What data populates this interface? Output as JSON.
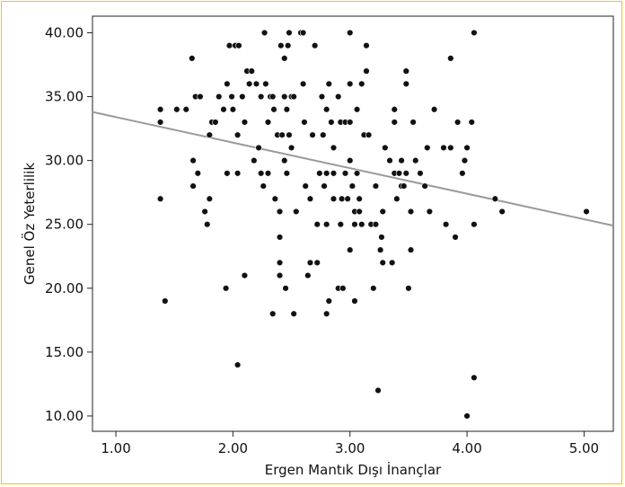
{
  "chart_data": {
    "type": "scatter",
    "title": "",
    "xlabel": "Ergen Mantık Dışı İnançlar",
    "ylabel": "Genel Öz Yeterlilik",
    "xlim": [
      0.8,
      5.25
    ],
    "ylim": [
      8.8,
      41.3
    ],
    "xticks": [
      1.0,
      2.0,
      3.0,
      4.0,
      5.0
    ],
    "yticks": [
      10.0,
      15.0,
      20.0,
      25.0,
      30.0,
      35.0,
      40.0
    ],
    "xtick_labels": [
      "1.00",
      "2.00",
      "3.00",
      "4.00",
      "5.00"
    ],
    "ytick_labels": [
      "10.00",
      "15.00",
      "20.00",
      "25.00",
      "30.00",
      "35.00",
      "40.00"
    ],
    "grid": false,
    "legend": "none",
    "fit_line": {
      "x1": 0.8,
      "y1": 33.8,
      "x2": 5.25,
      "y2": 24.9
    },
    "colors": {
      "frame": "#f5c400",
      "points": "#111111",
      "fit_line": "#9a9a9a",
      "axes": "#222222"
    },
    "points": [
      [
        1.38,
        34
      ],
      [
        1.38,
        33
      ],
      [
        1.38,
        27
      ],
      [
        1.42,
        19
      ],
      [
        1.52,
        34
      ],
      [
        1.6,
        34
      ],
      [
        1.65,
        38
      ],
      [
        1.66,
        30
      ],
      [
        1.66,
        28
      ],
      [
        1.68,
        35
      ],
      [
        1.7,
        29
      ],
      [
        1.72,
        35
      ],
      [
        1.76,
        26
      ],
      [
        1.78,
        25
      ],
      [
        1.8,
        27
      ],
      [
        1.8,
        32
      ],
      [
        1.82,
        33
      ],
      [
        1.85,
        33
      ],
      [
        1.88,
        35
      ],
      [
        1.92,
        34
      ],
      [
        1.94,
        20
      ],
      [
        1.95,
        29
      ],
      [
        1.95,
        36
      ],
      [
        1.97,
        39
      ],
      [
        1.99,
        35
      ],
      [
        2.0,
        34
      ],
      [
        2.02,
        39
      ],
      [
        2.04,
        29
      ],
      [
        2.04,
        32
      ],
      [
        2.04,
        14
      ],
      [
        2.05,
        39
      ],
      [
        2.08,
        35
      ],
      [
        2.1,
        33
      ],
      [
        2.1,
        21
      ],
      [
        2.12,
        37
      ],
      [
        2.14,
        36
      ],
      [
        2.16,
        37
      ],
      [
        2.18,
        30
      ],
      [
        2.2,
        36
      ],
      [
        2.22,
        31
      ],
      [
        2.24,
        29
      ],
      [
        2.24,
        35
      ],
      [
        2.26,
        28
      ],
      [
        2.27,
        40
      ],
      [
        2.28,
        36
      ],
      [
        2.3,
        29
      ],
      [
        2.3,
        33
      ],
      [
        2.32,
        35
      ],
      [
        2.34,
        35
      ],
      [
        2.34,
        18
      ],
      [
        2.35,
        34
      ],
      [
        2.36,
        27
      ],
      [
        2.38,
        32
      ],
      [
        2.4,
        26
      ],
      [
        2.4,
        24
      ],
      [
        2.4,
        22
      ],
      [
        2.4,
        21
      ],
      [
        2.41,
        39
      ],
      [
        2.42,
        32
      ],
      [
        2.44,
        38
      ],
      [
        2.44,
        35
      ],
      [
        2.44,
        30
      ],
      [
        2.45,
        20
      ],
      [
        2.46,
        29
      ],
      [
        2.46,
        34
      ],
      [
        2.47,
        39
      ],
      [
        2.48,
        32
      ],
      [
        2.48,
        40
      ],
      [
        2.5,
        31
      ],
      [
        2.5,
        35
      ],
      [
        2.52,
        18
      ],
      [
        2.52,
        35
      ],
      [
        2.54,
        26
      ],
      [
        2.58,
        40
      ],
      [
        2.6,
        40
      ],
      [
        2.6,
        36
      ],
      [
        2.61,
        33
      ],
      [
        2.62,
        28
      ],
      [
        2.64,
        21
      ],
      [
        2.66,
        22
      ],
      [
        2.66,
        27
      ],
      [
        2.68,
        32
      ],
      [
        2.7,
        39
      ],
      [
        2.72,
        22
      ],
      [
        2.72,
        25
      ],
      [
        2.74,
        29
      ],
      [
        2.76,
        35
      ],
      [
        2.77,
        32
      ],
      [
        2.78,
        28
      ],
      [
        2.8,
        34
      ],
      [
        2.8,
        29
      ],
      [
        2.8,
        25
      ],
      [
        2.8,
        18
      ],
      [
        2.82,
        36
      ],
      [
        2.82,
        19
      ],
      [
        2.84,
        33
      ],
      [
        2.86,
        31
      ],
      [
        2.86,
        27
      ],
      [
        2.86,
        29
      ],
      [
        2.9,
        35
      ],
      [
        2.9,
        20
      ],
      [
        2.92,
        33
      ],
      [
        2.92,
        25
      ],
      [
        2.93,
        27
      ],
      [
        2.94,
        20
      ],
      [
        2.96,
        33
      ],
      [
        2.96,
        29
      ],
      [
        2.98,
        27
      ],
      [
        3.0,
        40
      ],
      [
        3.0,
        36
      ],
      [
        3.0,
        33
      ],
      [
        3.0,
        30
      ],
      [
        3.0,
        23
      ],
      [
        3.02,
        28
      ],
      [
        3.04,
        25
      ],
      [
        3.04,
        26
      ],
      [
        3.04,
        19
      ],
      [
        3.06,
        29
      ],
      [
        3.06,
        34
      ],
      [
        3.08,
        26
      ],
      [
        3.08,
        27
      ],
      [
        3.1,
        25
      ],
      [
        3.1,
        36
      ],
      [
        3.12,
        32
      ],
      [
        3.14,
        37
      ],
      [
        3.14,
        39
      ],
      [
        3.16,
        32
      ],
      [
        3.18,
        25
      ],
      [
        3.2,
        20
      ],
      [
        3.22,
        28
      ],
      [
        3.22,
        25
      ],
      [
        3.24,
        12
      ],
      [
        3.26,
        23
      ],
      [
        3.27,
        24
      ],
      [
        3.28,
        26
      ],
      [
        3.28,
        22
      ],
      [
        3.3,
        31
      ],
      [
        3.34,
        30
      ],
      [
        3.36,
        22
      ],
      [
        3.38,
        33
      ],
      [
        3.38,
        34
      ],
      [
        3.38,
        29
      ],
      [
        3.4,
        27
      ],
      [
        3.42,
        29
      ],
      [
        3.44,
        30
      ],
      [
        3.44,
        28
      ],
      [
        3.46,
        28
      ],
      [
        3.48,
        29
      ],
      [
        3.48,
        36
      ],
      [
        3.48,
        37
      ],
      [
        3.5,
        20
      ],
      [
        3.52,
        26
      ],
      [
        3.52,
        23
      ],
      [
        3.54,
        33
      ],
      [
        3.56,
        30
      ],
      [
        3.6,
        29
      ],
      [
        3.64,
        28
      ],
      [
        3.66,
        31
      ],
      [
        3.68,
        26
      ],
      [
        3.72,
        34
      ],
      [
        3.8,
        31
      ],
      [
        3.82,
        25
      ],
      [
        3.86,
        31
      ],
      [
        3.86,
        38
      ],
      [
        3.9,
        24
      ],
      [
        3.92,
        33
      ],
      [
        3.96,
        29
      ],
      [
        3.98,
        30
      ],
      [
        4.0,
        31
      ],
      [
        4.0,
        10
      ],
      [
        4.04,
        33
      ],
      [
        4.06,
        25
      ],
      [
        4.06,
        40
      ],
      [
        4.06,
        13
      ],
      [
        4.24,
        27
      ],
      [
        4.3,
        26
      ],
      [
        5.02,
        26
      ]
    ]
  }
}
